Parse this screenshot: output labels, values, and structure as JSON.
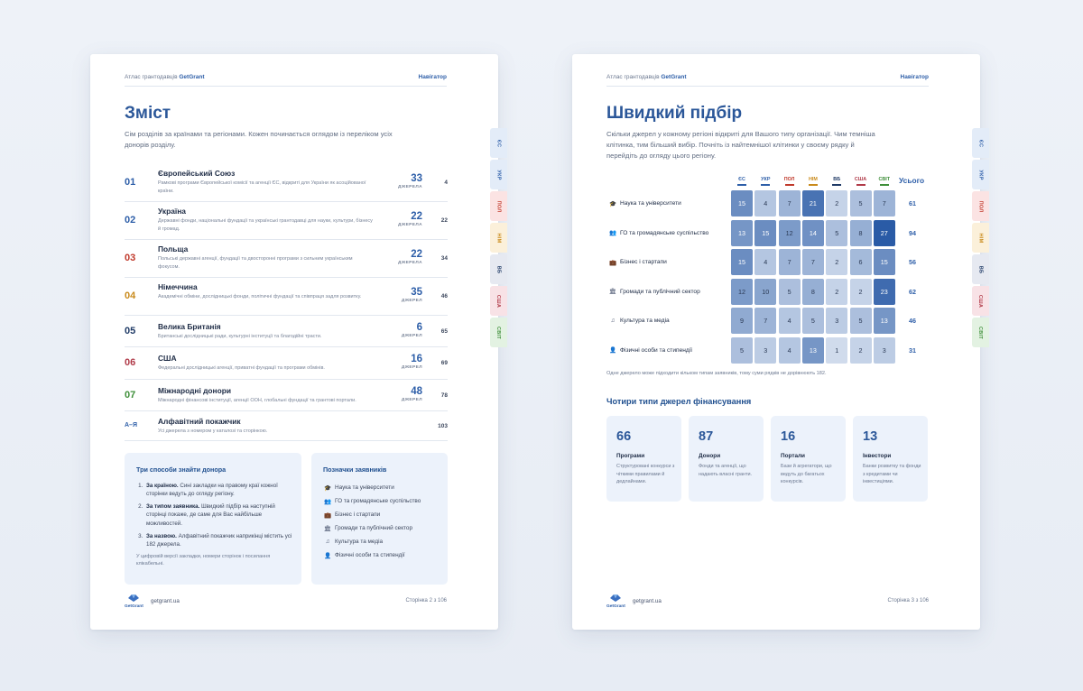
{
  "left": {
    "header": {
      "atlas_text": "Атлас грантодавців",
      "brand": "GetGrant",
      "nav": "Навігатор"
    },
    "title": "Зміст",
    "intro": "Сім розділів за країнами та регіонами. Кожен починається оглядом із переліком усіх донорів розділу.",
    "toc": [
      {
        "num": "01",
        "name": "Європейський Союз",
        "desc": "Рамкові програми Європейської комісії та агенції ЄС, відкриті для України як асоційованої країни.",
        "count": "33",
        "count_label": "ДЖЕРЕЛА",
        "page": "4",
        "color": "#2d5ea8"
      },
      {
        "num": "02",
        "name": "Україна",
        "desc": "Державні фонди, національні фундації та українські грантодавці для науки, культури, бізнесу й громад.",
        "count": "22",
        "count_label": "ДЖЕРЕЛА",
        "page": "22",
        "color": "#2d5ea8"
      },
      {
        "num": "03",
        "name": "Польща",
        "desc": "Польські державні агенції, фундації та двосторонні програми з сильним українським фокусом.",
        "count": "22",
        "count_label": "ДЖЕРЕЛА",
        "page": "34",
        "color": "#c0392b"
      },
      {
        "num": "04",
        "name": "Німеччина",
        "desc": "Академічні обміни, дослідницькі фонди, політичні фундації та співпраця задля розвитку.",
        "count": "35",
        "count_label": "ДЖЕРЕЛ",
        "page": "46",
        "color": "#c98a1b"
      },
      {
        "num": "05",
        "name": "Велика Британія",
        "desc": "Британські дослідницькі ради, культурні інституції та благодійні трасти.",
        "count": "6",
        "count_label": "ДЖЕРЕЛ",
        "page": "65",
        "color": "#1f3a66"
      },
      {
        "num": "06",
        "name": "США",
        "desc": "Федеральні дослідницькі агенції, приватні фундації та програми обмінів.",
        "count": "16",
        "count_label": "ДЖЕРЕЛ",
        "page": "69",
        "color": "#b03a48"
      },
      {
        "num": "07",
        "name": "Міжнародні донори",
        "desc": "Міжнародні фінансові інституції, агенції ООН, глобальні фундації та грантові портали.",
        "count": "48",
        "count_label": "ДЖЕРЕЛ",
        "page": "78",
        "color": "#3f8f3a"
      },
      {
        "num": "А–Я",
        "name": "Алфавітний покажчик",
        "desc": "Усі джерела з номером у каталозі та сторінкою.",
        "count": "",
        "count_label": "",
        "page": "103",
        "color": "#2d5ea8"
      }
    ],
    "ways_title": "Три способи знайти донора",
    "ways": [
      {
        "bold": "За країною.",
        "text": " Сині закладки на правому краї кожної сторінки ведуть до огляду регіону."
      },
      {
        "bold": "За типом заявника.",
        "text": " Швидкий підбір на наступній сторінці покаже, де саме для Вас найбільше можливостей."
      },
      {
        "bold": "За назвою.",
        "text": " Алфавітний покажчик наприкінці містить усі 182 джерела."
      }
    ],
    "ways_note": "У цифровій версії закладки, номери сторінок і посилання клікабельні.",
    "legend_title": "Позначки заявників",
    "legend": [
      {
        "icon": "🎓",
        "label": "Наука та університети"
      },
      {
        "icon": "👥",
        "label": "ГО та громадянське суспільство"
      },
      {
        "icon": "💼",
        "label": "Бізнес і стартапи"
      },
      {
        "icon": "🏛",
        "label": "Громади та публічний сектор"
      },
      {
        "icon": "♫",
        "label": "Культура та медіа"
      },
      {
        "icon": "👤",
        "label": "Фізичні особи та стипендії"
      }
    ],
    "footer": {
      "logo": "GetGrant",
      "site": "getgrant.ua",
      "page": "Сторінка 2 з 106"
    }
  },
  "right": {
    "header": {
      "atlas_text": "Атлас грантодавців",
      "brand": "GetGrant",
      "nav": "Навігатор"
    },
    "title": "Швидкий підбір",
    "intro": "Скільки джерел у кожному регіоні відкриті для Вашого типу організації. Чим темніша клітинка, тим більший вибір. Почніть із найтемнішої клітинки у своєму рядку й перейдіть до огляду цього регіону.",
    "columns": [
      {
        "label": "ЄС",
        "color": "#2d5ea8"
      },
      {
        "label": "УКР",
        "color": "#2d5ea8"
      },
      {
        "label": "ПОЛ",
        "color": "#c0392b"
      },
      {
        "label": "НІМ",
        "color": "#c98a1b"
      },
      {
        "label": "ВБ",
        "color": "#1f3a66"
      },
      {
        "label": "США",
        "color": "#b03a48"
      },
      {
        "label": "СВІТ",
        "color": "#3f8f3a"
      }
    ],
    "total_header": "Усього",
    "rows": [
      {
        "icon": "🎓",
        "label": "Наука та університети",
        "values": [
          15,
          4,
          7,
          21,
          2,
          5,
          7
        ],
        "total": "61"
      },
      {
        "icon": "👥",
        "label": "ГО та громадянське суспільство",
        "values": [
          13,
          15,
          12,
          14,
          5,
          8,
          27
        ],
        "total": "94"
      },
      {
        "icon": "💼",
        "label": "Бізнес і стартапи",
        "values": [
          15,
          4,
          7,
          7,
          2,
          6,
          15
        ],
        "total": "56"
      },
      {
        "icon": "🏛",
        "label": "Громади та публічний сектор",
        "values": [
          12,
          10,
          5,
          8,
          2,
          2,
          23
        ],
        "total": "62"
      },
      {
        "icon": "♫",
        "label": "Культура та медіа",
        "values": [
          9,
          7,
          4,
          5,
          3,
          5,
          13
        ],
        "total": "46"
      },
      {
        "icon": "👤",
        "label": "Фізичні особи та стипендії",
        "values": [
          5,
          3,
          4,
          13,
          1,
          2,
          3
        ],
        "total": "31"
      }
    ],
    "note": "Одне джерело може підходити кільком типам заявників, тому суми рядків не дорівнюють 182.",
    "types_title": "Чотири типи джерел фінансування",
    "types": [
      {
        "n": "66",
        "title": "Програми",
        "desc": "Структуровані конкурси з чіткими правилами й дедлайнами."
      },
      {
        "n": "87",
        "title": "Донори",
        "desc": "Фонди та агенції, що надають власні гранти."
      },
      {
        "n": "16",
        "title": "Портали",
        "desc": "Бази й агрегатори, що ведуть до багатьох конкурсів."
      },
      {
        "n": "13",
        "title": "Інвестори",
        "desc": "Банки розвитку та фонди з кредитами чи інвестиціями."
      }
    ],
    "footer": {
      "logo": "GetGrant",
      "site": "getgrant.ua",
      "page": "Сторінка 3 з 106"
    }
  },
  "tabs": [
    {
      "label": "ЄС",
      "color": "#2d5ea8",
      "bg": "#e3ecf8"
    },
    {
      "label": "УКР",
      "color": "#2d5ea8",
      "bg": "#e3ecf8"
    },
    {
      "label": "ПОЛ",
      "color": "#c0392b",
      "bg": "#fbe3e3"
    },
    {
      "label": "НІМ",
      "color": "#c98a1b",
      "bg": "#fbf0da"
    },
    {
      "label": "ВБ",
      "color": "#1f3a66",
      "bg": "#e6e9f1"
    },
    {
      "label": "США",
      "color": "#b03a48",
      "bg": "#f8e2e6"
    },
    {
      "label": "СВІТ",
      "color": "#3f8f3a",
      "bg": "#e3f2e2"
    }
  ],
  "heat_colors": {
    "low": "#dfe7f3",
    "high": "#2a5ba6"
  }
}
